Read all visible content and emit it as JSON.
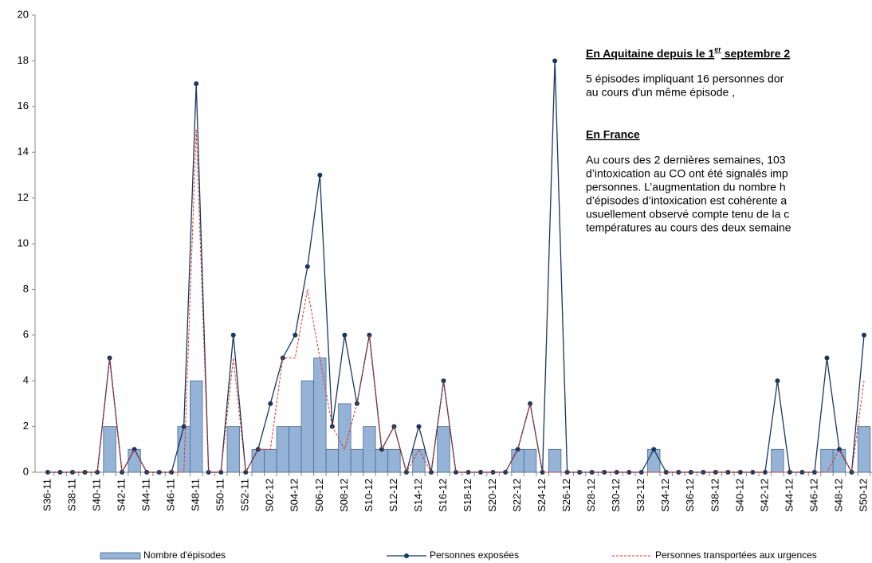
{
  "chart_data": {
    "type": "bar-line",
    "categories": [
      "S36-11",
      null,
      "S38-11",
      null,
      "S40-11",
      null,
      "S42-11",
      null,
      "S44-11",
      null,
      "S46-11",
      null,
      "S48-11",
      null,
      "S50-11",
      null,
      "S52-11",
      null,
      "S02-12",
      null,
      "S04-12",
      null,
      "S06-12",
      null,
      "S08-12",
      null,
      "S10-12",
      null,
      "S12-12",
      null,
      "S14-12",
      null,
      "S16-12",
      null,
      "S18-12",
      null,
      "S20-12",
      null,
      "S22-12",
      null,
      "S24-12",
      null,
      "S26-12",
      null,
      "S28-12",
      null,
      "S30-12",
      null,
      "S32-12",
      null,
      "S34-12",
      null,
      "S36-12",
      null,
      "S38-12",
      null,
      "S40-12",
      null,
      "S42-12",
      null,
      "S44-12",
      null,
      "S46-12",
      null,
      "S48-12",
      null,
      "S50-12"
    ],
    "series": [
      {
        "name": "Nombre d'épisodes",
        "kind": "bar",
        "color": "#95b3d7",
        "values": [
          0,
          0,
          0,
          0,
          0,
          2,
          0,
          1,
          0,
          0,
          0,
          2,
          4,
          0,
          0,
          2,
          0,
          1,
          1,
          2,
          2,
          4,
          5,
          1,
          3,
          1,
          2,
          1,
          1,
          0,
          1,
          0,
          2,
          0,
          0,
          0,
          0,
          0,
          1,
          1,
          0,
          1,
          0,
          0,
          0,
          0,
          0,
          0,
          0,
          1,
          0,
          0,
          0,
          0,
          0,
          0,
          0,
          0,
          0,
          1,
          0,
          0,
          0,
          1,
          1,
          0,
          2
        ]
      },
      {
        "name": "Personnes exposées",
        "kind": "line",
        "color": "#17375e",
        "values": [
          0,
          0,
          0,
          0,
          0,
          5,
          0,
          1,
          0,
          0,
          0,
          2,
          17,
          0,
          0,
          6,
          0,
          1,
          3,
          5,
          6,
          9,
          13,
          2,
          6,
          3,
          6,
          1,
          2,
          0,
          2,
          0,
          4,
          0,
          0,
          0,
          0,
          0,
          1,
          3,
          0,
          18,
          0,
          0,
          0,
          0,
          0,
          0,
          0,
          1,
          0,
          0,
          0,
          0,
          0,
          0,
          0,
          0,
          0,
          4,
          0,
          0,
          0,
          5,
          1,
          0,
          6
        ]
      },
      {
        "name": "Personnes transportées aux urgences",
        "kind": "dashed",
        "color": "#e0301e",
        "values": [
          0,
          0,
          0,
          0,
          0,
          5,
          0,
          1,
          0,
          0,
          0,
          0,
          15,
          0,
          0,
          5,
          0,
          1,
          1,
          5,
          5,
          8,
          5,
          2,
          1,
          3,
          6,
          1,
          2,
          0,
          1,
          0,
          4,
          0,
          0,
          0,
          0,
          0,
          1,
          3,
          0,
          0,
          0,
          0,
          0,
          0,
          0,
          0,
          0,
          0,
          0,
          0,
          0,
          0,
          0,
          0,
          0,
          0,
          0,
          0,
          0,
          0,
          0,
          0,
          1,
          0,
          4
        ]
      }
    ],
    "ylim": [
      0,
      20
    ],
    "yticks": [
      0,
      2,
      4,
      6,
      8,
      10,
      12,
      14,
      16,
      18,
      20
    ],
    "grid": false,
    "legend": "bottom",
    "annotation": {
      "heading1": "En Aquitaine depuis le 1",
      "heading1_sup": "er",
      "heading1_end": " septembre 2",
      "para1": [
        "5 épisodes impliquant 16 personnes dor",
        "au cours d'un même épisode ,"
      ],
      "heading2": "En France",
      "para2": [
        "Au cours des 2 dernières semaines, 103",
        "d’intoxication au CO ont été signalés imp",
        "personnes. L’augmentation du nombre h",
        "d’épisodes d’intoxication est cohérente a",
        "usuellement observé compte tenu de la c",
        "températures au cours des deux semaine"
      ]
    }
  }
}
